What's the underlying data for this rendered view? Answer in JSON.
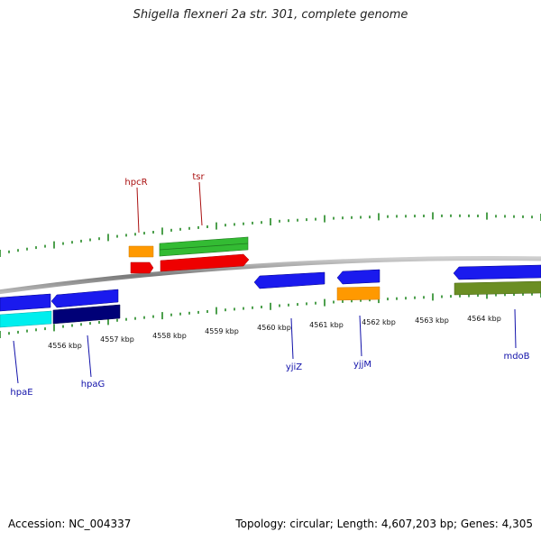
{
  "title": "Shigella flexneri 2a str. 301, complete genome",
  "footer": {
    "accession": "Accession: NC_004337",
    "topology": "Topology: circular; Length: 4,607,203 bp; Genes: 4,305"
  },
  "scale": {
    "unit": "kbp",
    "labels": [
      "4556 kbp",
      "4557 kbp",
      "4558 kbp",
      "4559 kbp",
      "4560 kbp",
      "4561 kbp",
      "4562 kbp",
      "4563 kbp",
      "4564 kbp"
    ]
  },
  "genes": [
    {
      "name": "hpcR",
      "strand": "+",
      "color": "#aa1111"
    },
    {
      "name": "tsr",
      "strand": "+",
      "color": "#aa1111"
    },
    {
      "name": "hpaE",
      "strand": "-",
      "color": "#1111aa"
    },
    {
      "name": "hpaG",
      "strand": "-",
      "color": "#1111aa"
    },
    {
      "name": "yjiZ",
      "strand": "-",
      "color": "#1111aa"
    },
    {
      "name": "yjjM",
      "strand": "-",
      "color": "#1111aa"
    },
    {
      "name": "mdoB",
      "strand": "-",
      "color": "#1111aa"
    }
  ],
  "colors": {
    "backbone": "#8a8a8a",
    "tick": "#228822",
    "orange": "#ff9900",
    "red": "#ee0000",
    "green": "#33bb33",
    "blue": "#1a1aee",
    "navy": "#000077",
    "cyan": "#00eeee",
    "olive": "#6b8e23"
  }
}
